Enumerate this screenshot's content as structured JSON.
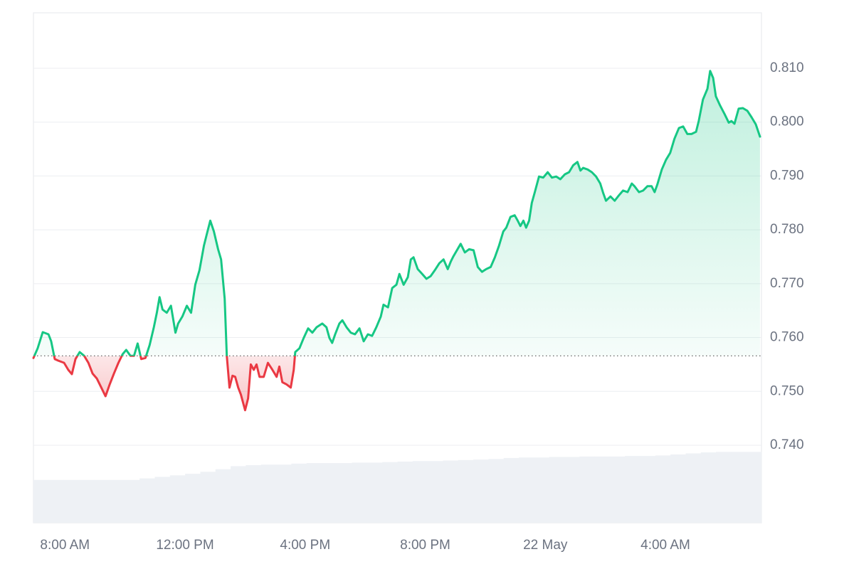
{
  "chart_data": {
    "type": "line",
    "x": [
      6.95,
      7.09,
      7.26,
      7.45,
      7.54,
      7.66,
      7.78,
      7.97,
      8.11,
      8.23,
      8.35,
      8.49,
      8.64,
      8.78,
      8.92,
      9.06,
      9.21,
      9.35,
      9.49,
      9.63,
      9.78,
      9.92,
      10.04,
      10.18,
      10.3,
      10.42,
      10.54,
      10.68,
      10.82,
      10.96,
      11.06,
      11.15,
      11.25,
      11.39,
      11.53,
      11.68,
      11.77,
      11.91,
      12.06,
      12.2,
      12.34,
      12.48,
      12.63,
      12.72,
      12.84,
      12.96,
      13.1,
      13.2,
      13.32,
      13.39,
      13.48,
      13.58,
      13.67,
      13.77,
      13.86,
      14.0,
      14.1,
      14.19,
      14.29,
      14.38,
      14.48,
      14.62,
      14.76,
      14.91,
      15.05,
      15.14,
      15.24,
      15.38,
      15.52,
      15.62,
      15.67,
      15.81,
      15.95,
      16.1,
      16.24,
      16.38,
      16.57,
      16.71,
      16.81,
      16.9,
      17.0,
      17.14,
      17.24,
      17.38,
      17.52,
      17.66,
      17.81,
      17.95,
      18.09,
      18.23,
      18.37,
      18.52,
      18.61,
      18.76,
      18.9,
      19.04,
      19.14,
      19.28,
      19.42,
      19.52,
      19.61,
      19.75,
      19.9,
      20.04,
      20.18,
      20.32,
      20.47,
      20.61,
      20.75,
      20.85,
      20.94,
      21.18,
      21.32,
      21.46,
      21.61,
      21.75,
      21.89,
      22.03,
      22.18,
      22.32,
      22.46,
      22.6,
      22.7,
      22.84,
      22.98,
      23.08,
      23.17,
      23.27,
      23.36,
      23.46,
      23.55,
      23.65,
      23.79,
      23.93,
      24.08,
      24.22,
      24.36,
      24.5,
      24.65,
      24.79,
      24.93,
      25.07,
      25.17,
      25.26,
      25.41,
      25.55,
      25.69,
      25.83,
      25.93,
      26.02,
      26.17,
      26.31,
      26.45,
      26.59,
      26.74,
      26.88,
      26.97,
      27.12,
      27.26,
      27.4,
      27.54,
      27.64,
      27.73,
      27.88,
      28.02,
      28.16,
      28.3,
      28.45,
      28.59,
      28.73,
      28.87,
      29.02,
      29.11,
      29.25,
      29.4,
      29.49,
      29.59,
      29.68,
      29.82,
      29.97,
      30.11,
      30.2,
      30.3,
      30.44,
      30.58,
      30.73,
      30.87,
      31.01,
      31.15
    ],
    "values": [
      0.7562,
      0.758,
      0.761,
      0.7606,
      0.7593,
      0.756,
      0.7557,
      0.7553,
      0.754,
      0.7532,
      0.756,
      0.7573,
      0.7566,
      0.7553,
      0.7533,
      0.7524,
      0.7507,
      0.7491,
      0.7513,
      0.7533,
      0.7553,
      0.7569,
      0.7577,
      0.7566,
      0.7566,
      0.7589,
      0.756,
      0.7562,
      0.7586,
      0.7619,
      0.7646,
      0.7675,
      0.7652,
      0.7646,
      0.7659,
      0.7609,
      0.7626,
      0.7639,
      0.7659,
      0.7646,
      0.7698,
      0.7725,
      0.7771,
      0.7791,
      0.7817,
      0.7797,
      0.7764,
      0.7745,
      0.7672,
      0.7566,
      0.7507,
      0.7529,
      0.7527,
      0.7507,
      0.7494,
      0.7465,
      0.7487,
      0.755,
      0.754,
      0.755,
      0.7527,
      0.7527,
      0.7553,
      0.754,
      0.7527,
      0.7546,
      0.7517,
      0.7513,
      0.7507,
      0.754,
      0.7573,
      0.758,
      0.7599,
      0.7617,
      0.7609,
      0.7619,
      0.7626,
      0.7619,
      0.7599,
      0.759,
      0.7606,
      0.7626,
      0.7632,
      0.7619,
      0.7609,
      0.7606,
      0.7617,
      0.7593,
      0.7606,
      0.7603,
      0.7619,
      0.7639,
      0.7661,
      0.7656,
      0.7692,
      0.7698,
      0.7718,
      0.7698,
      0.7712,
      0.7745,
      0.7749,
      0.7727,
      0.7718,
      0.7709,
      0.7714,
      0.7725,
      0.7738,
      0.7745,
      0.7727,
      0.7741,
      0.7751,
      0.7774,
      0.7758,
      0.7764,
      0.7762,
      0.7731,
      0.7722,
      0.7727,
      0.7731,
      0.7749,
      0.7771,
      0.7797,
      0.7804,
      0.7824,
      0.7827,
      0.7817,
      0.7807,
      0.7817,
      0.7804,
      0.7817,
      0.785,
      0.787,
      0.7899,
      0.7897,
      0.7907,
      0.7897,
      0.7899,
      0.7894,
      0.7903,
      0.7907,
      0.792,
      0.7926,
      0.791,
      0.7915,
      0.7912,
      0.7907,
      0.7899,
      0.7886,
      0.7868,
      0.7854,
      0.7862,
      0.7854,
      0.7864,
      0.7873,
      0.787,
      0.7886,
      0.7881,
      0.787,
      0.7873,
      0.7881,
      0.7881,
      0.787,
      0.7884,
      0.7912,
      0.793,
      0.7943,
      0.7969,
      0.7989,
      0.7992,
      0.7978,
      0.7978,
      0.7982,
      0.8002,
      0.8042,
      0.8062,
      0.8095,
      0.8082,
      0.8048,
      0.8031,
      0.8015,
      0.7999,
      0.8002,
      0.7997,
      0.8025,
      0.8026,
      0.8021,
      0.8009,
      0.7996,
      0.7973
    ],
    "baseline": 0.7566,
    "up_color": "#16c784",
    "down_color": "#ea3943",
    "xlim": [
      6.95,
      31.2
    ],
    "xticks": [
      {
        "value": 8,
        "label": "8:00 AM"
      },
      {
        "value": 12,
        "label": "12:00 PM"
      },
      {
        "value": 16,
        "label": "4:00 PM"
      },
      {
        "value": 20,
        "label": "8:00 PM"
      },
      {
        "value": 24,
        "label": "22 May"
      },
      {
        "value": 28,
        "label": "4:00 AM"
      }
    ],
    "ylim": [
      0.7256,
      0.8203
    ],
    "yticks": [
      {
        "value": 0.74,
        "label": "0.740"
      },
      {
        "value": 0.75,
        "label": "0.750"
      },
      {
        "value": 0.76,
        "label": "0.760"
      },
      {
        "value": 0.77,
        "label": "0.770"
      },
      {
        "value": 0.78,
        "label": "0.780"
      },
      {
        "value": 0.79,
        "label": "0.790"
      },
      {
        "value": 0.8,
        "label": "0.800"
      },
      {
        "value": 0.81,
        "label": "0.810"
      }
    ],
    "grid": true,
    "volume": {
      "color": "#eef1f5",
      "axis": "y2",
      "values": [
        8.4,
        8.4,
        8.4,
        8.4,
        8.4,
        8.4,
        8.4,
        8.7,
        9.0,
        9.3,
        9.6,
        10.0,
        10.5,
        11.1,
        11.3,
        11.4,
        11.4,
        11.6,
        11.7,
        11.7,
        11.7,
        11.8,
        11.8,
        11.9,
        12.0,
        12.1,
        12.1,
        12.2,
        12.3,
        12.4,
        12.5,
        12.7,
        12.8,
        12.8,
        12.9,
        12.9,
        13.0,
        13.0,
        13.0,
        13.1,
        13.1,
        13.2,
        13.4,
        13.6,
        13.8,
        13.9,
        13.9,
        13.9
      ]
    },
    "y2lim": [
      0,
      100
    ]
  }
}
